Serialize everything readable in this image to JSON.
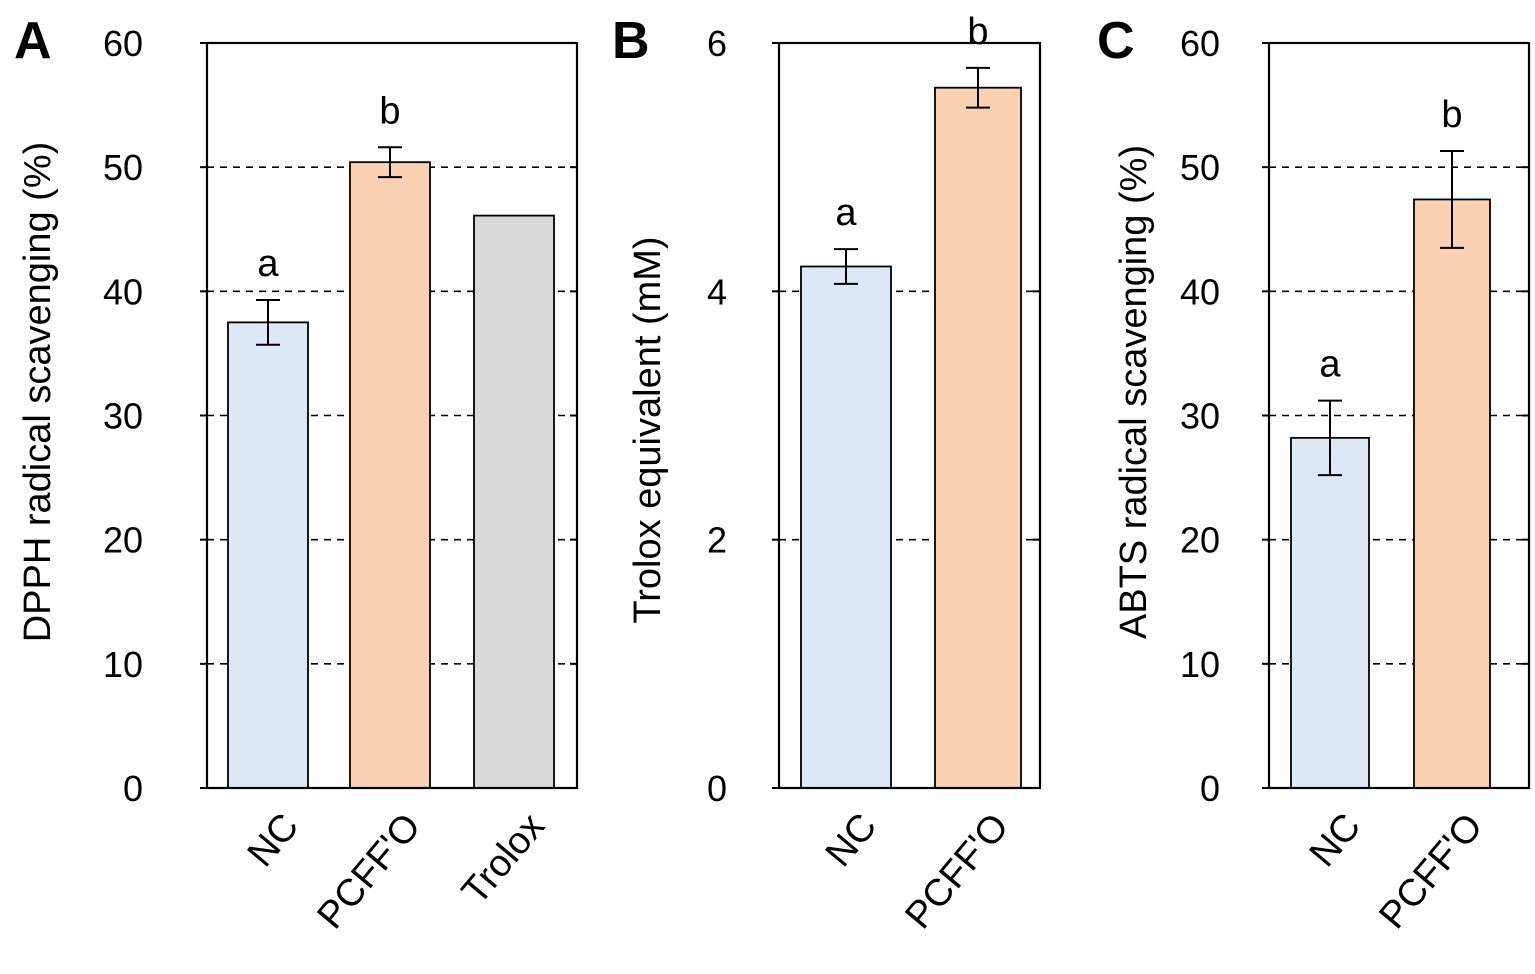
{
  "chart_data": [
    {
      "panel": "A",
      "type": "bar",
      "ylabel": "DPPH radical scavenging (%)",
      "ylim": [
        0,
        60
      ],
      "yticks": [
        0,
        10,
        20,
        30,
        40,
        50,
        60
      ],
      "tick_labels": [
        "0",
        "10",
        "20",
        "30",
        "40",
        "50",
        "60"
      ],
      "grid": "dashed at 10, 20, 30, 40, 50",
      "categories": [
        "NC",
        "PCFF'O",
        "Trolox"
      ],
      "values": [
        37.5,
        50.4,
        46.1
      ],
      "errors": [
        1.8,
        1.2,
        null
      ],
      "sig_letters": [
        "a",
        "b",
        ""
      ],
      "colors": [
        "#dde8f7",
        "#fbd1b4",
        "#d9d9d9"
      ]
    },
    {
      "panel": "B",
      "type": "bar",
      "ylabel": "Trolox equivalent (mM)",
      "ylim": [
        0,
        6
      ],
      "yticks": [
        0,
        2,
        4,
        6
      ],
      "tick_labels": [
        "0",
        "2",
        "4",
        "6"
      ],
      "grid": "dashed at 2, 4",
      "categories": [
        "NC",
        "PCFF'O"
      ],
      "values": [
        4.2,
        5.64
      ],
      "errors": [
        0.14,
        0.16
      ],
      "sig_letters": [
        "a",
        "b"
      ],
      "colors": [
        "#dde8f7",
        "#fbd1b4"
      ]
    },
    {
      "panel": "C",
      "type": "bar",
      "ylabel": "ABTS radical scavenging (%)",
      "ylim": [
        0,
        60
      ],
      "yticks": [
        0,
        10,
        20,
        30,
        40,
        50,
        60
      ],
      "tick_labels": [
        "0",
        "10",
        "20",
        "30",
        "40",
        "50",
        "60"
      ],
      "grid": "dashed at 10, 20, 30, 40, 50",
      "categories": [
        "NC",
        "PCFF'O"
      ],
      "values": [
        28.2,
        47.4
      ],
      "errors": [
        3.0,
        3.9
      ],
      "sig_letters": [
        "a",
        "b"
      ],
      "colors": [
        "#dde8f7",
        "#fbd1b4"
      ]
    }
  ]
}
